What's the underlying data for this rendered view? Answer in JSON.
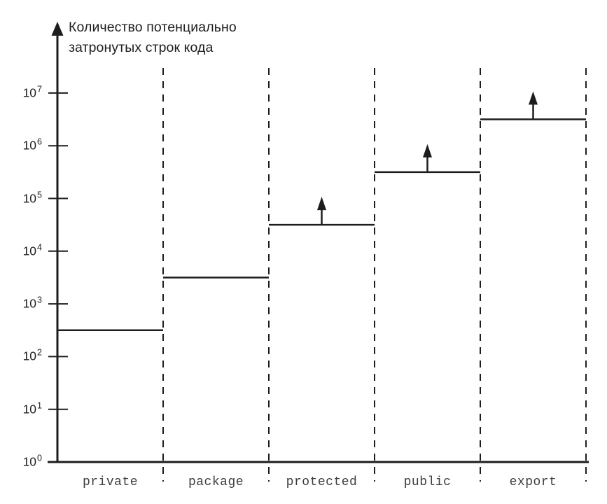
{
  "background": "#ffffff",
  "chart_data": {
    "type": "step",
    "yscale": "log",
    "title": "Количество потенциально затронутых строк кода",
    "title_lines": [
      "Количество потенциально",
      "затронутых строк кода"
    ],
    "ylabel": "Количество потенциально затронутых строк кода",
    "xlabel": "",
    "categories": [
      "private",
      "package",
      "protected",
      "public",
      "export"
    ],
    "log10_values": [
      2.5,
      3.5,
      4.5,
      5.5,
      6.5
    ],
    "values_approx": [
      300,
      3000,
      30000,
      300000,
      3000000
    ],
    "open_ended_up": [
      false,
      false,
      true,
      true,
      true
    ],
    "ylim": [
      1,
      10000000
    ],
    "ytick_base": "10",
    "ytick_exponents": [
      0,
      1,
      2,
      3,
      4,
      5,
      6,
      7
    ],
    "grid": "dashed vertical category separators",
    "legend": "none",
    "ink": "#1d1d1b",
    "tick_label_color": "#222222",
    "x_label_color": "#3d3d3d"
  }
}
